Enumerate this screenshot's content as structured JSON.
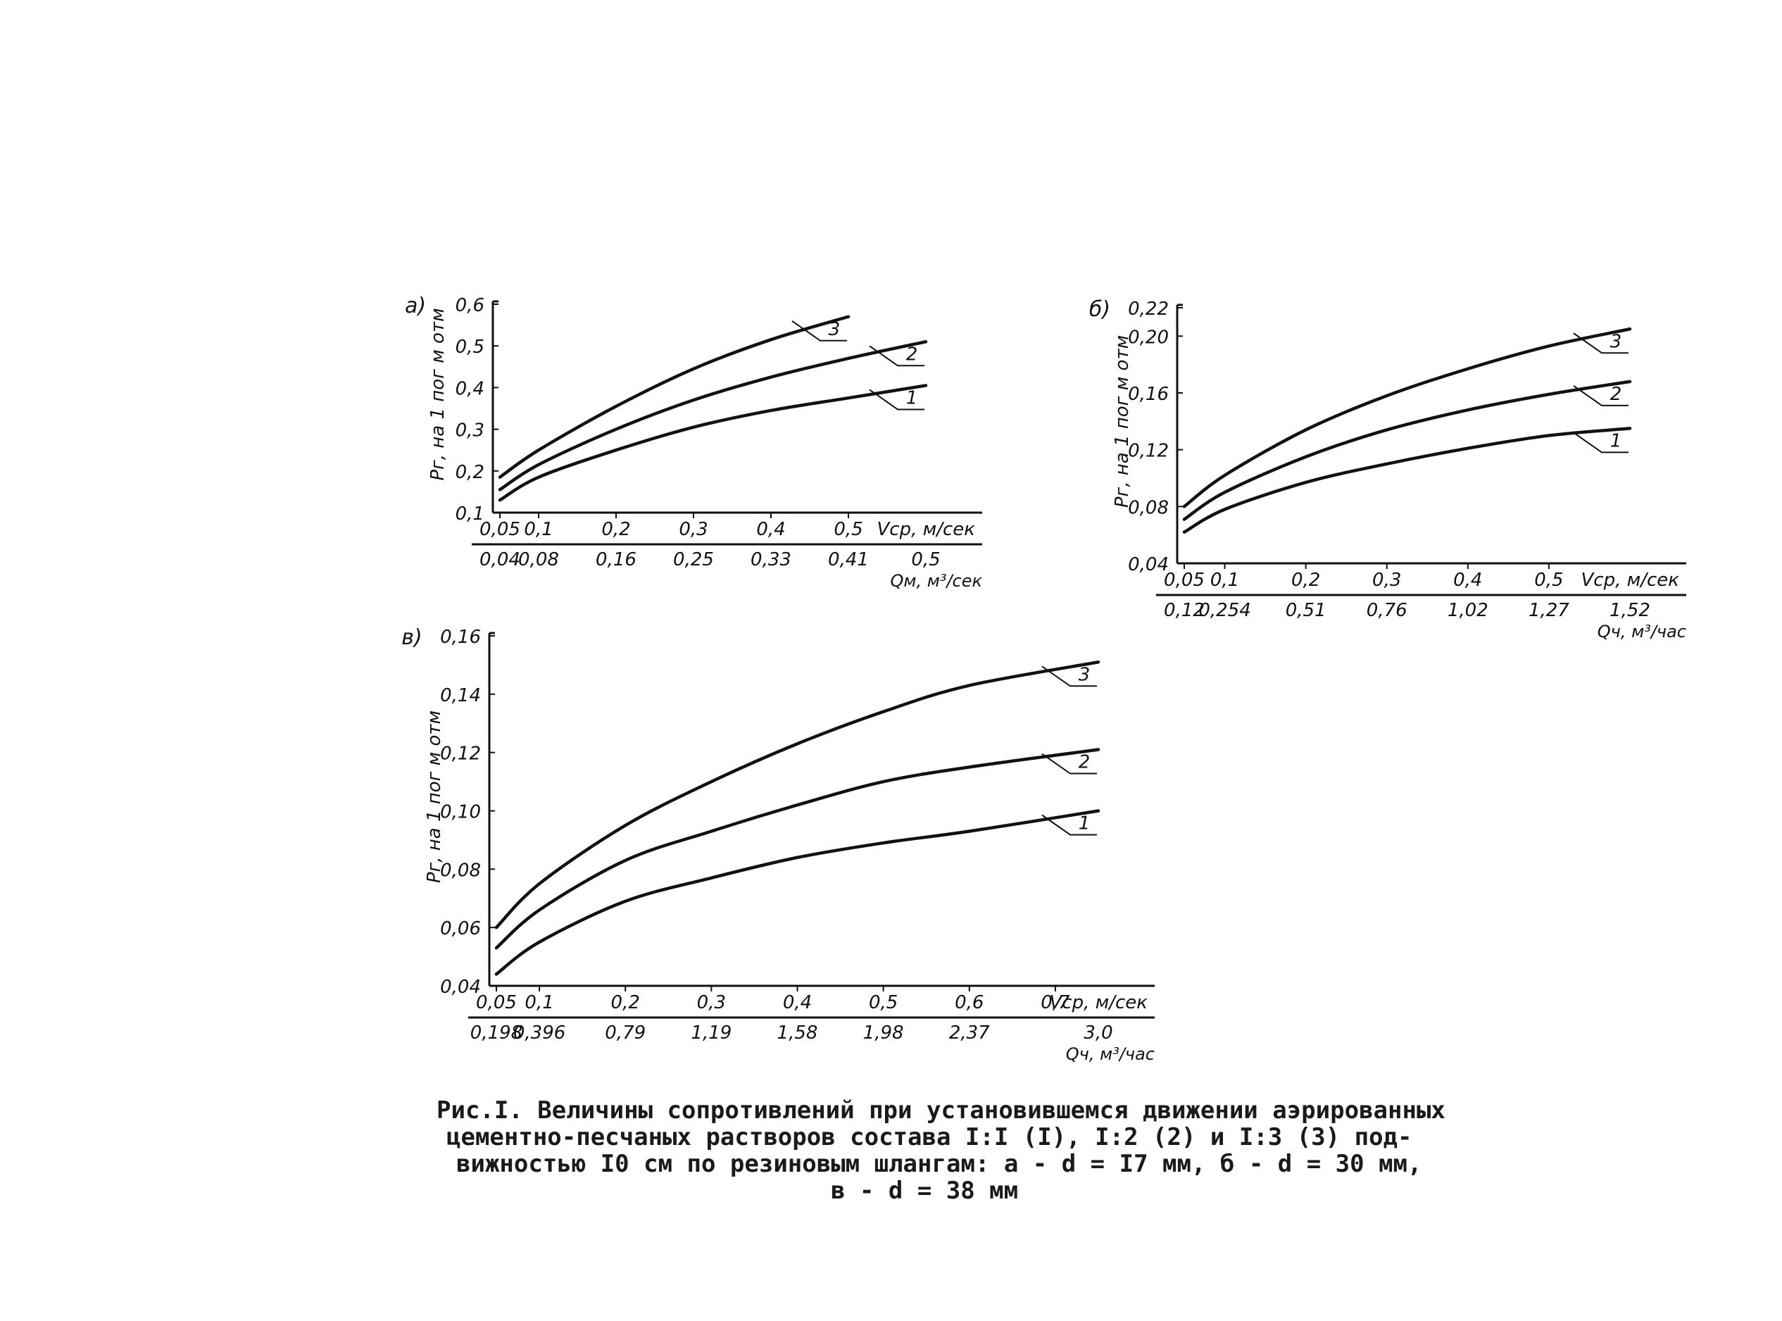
{
  "figure": {
    "caption_lines": [
      "Рис.I. Величины сопротивлений при установившемся движении аэрированных",
      "цементно-песчаных растворов состава I:I (I), I:2 (2) и I:3 (3) под-",
      "вижностью I0 см по резиновым шлангам: а - d = I7 мм, б - d = 30 мм,",
      "в - d = 38 мм"
    ]
  },
  "chart_data": [
    {
      "type": "line",
      "panel_label": "а)",
      "ylabel": "Рг, на 1 пог м отм",
      "xlabel": "Vср, м/сек",
      "x2label": "Qм, м³/сек",
      "xlim": [
        0.05,
        0.6
      ],
      "ylim": [
        0.1,
        0.6
      ],
      "yticks": [
        "0,1",
        "0,2",
        "0,3",
        "0,4",
        "0,5",
        "0,6"
      ],
      "xticks": [
        {
          "v": 0.05,
          "label": "0,05"
        },
        {
          "v": 0.1,
          "label": "0,1"
        },
        {
          "v": 0.2,
          "label": "0,2"
        },
        {
          "v": 0.3,
          "label": "0,3"
        },
        {
          "v": 0.4,
          "label": "0,4"
        },
        {
          "v": 0.5,
          "label": "0,5"
        }
      ],
      "x2ticks": [
        {
          "v": 0.05,
          "label": "0,04"
        },
        {
          "v": 0.1,
          "label": "0,08"
        },
        {
          "v": 0.2,
          "label": "0,16"
        },
        {
          "v": 0.3,
          "label": "0,25"
        },
        {
          "v": 0.4,
          "label": "0,33"
        },
        {
          "v": 0.5,
          "label": "0,41"
        },
        {
          "v": 0.6,
          "label": "0,5"
        }
      ],
      "series": [
        {
          "name": "1",
          "x": [
            0.05,
            0.1,
            0.2,
            0.3,
            0.4,
            0.5,
            0.6
          ],
          "y": [
            0.13,
            0.185,
            0.25,
            0.305,
            0.345,
            0.375,
            0.405
          ]
        },
        {
          "name": "2",
          "x": [
            0.05,
            0.1,
            0.2,
            0.3,
            0.4,
            0.5,
            0.6
          ],
          "y": [
            0.155,
            0.215,
            0.3,
            0.37,
            0.425,
            0.47,
            0.51
          ]
        },
        {
          "name": "3",
          "x": [
            0.05,
            0.1,
            0.2,
            0.3,
            0.4,
            0.5
          ],
          "y": [
            0.185,
            0.25,
            0.355,
            0.445,
            0.515,
            0.57
          ]
        }
      ]
    },
    {
      "type": "line",
      "panel_label": "б)",
      "ylabel": "Рг, на 1 пог м отм",
      "xlabel": "Vср, м/сек",
      "x2label": "Qч, м³/час",
      "xlim": [
        0.05,
        0.6
      ],
      "ylim": [
        0.04,
        0.22
      ],
      "yticks": [
        "0,04",
        "0,08",
        "0,12",
        "0,16",
        "0,20",
        "0,22"
      ],
      "ytick_values": [
        0.04,
        0.08,
        0.12,
        0.16,
        0.2,
        0.22
      ],
      "xticks": [
        {
          "v": 0.05,
          "label": "0,05"
        },
        {
          "v": 0.1,
          "label": "0,1"
        },
        {
          "v": 0.2,
          "label": "0,2"
        },
        {
          "v": 0.3,
          "label": "0,3"
        },
        {
          "v": 0.4,
          "label": "0,4"
        },
        {
          "v": 0.5,
          "label": "0,5"
        }
      ],
      "x2ticks": [
        {
          "v": 0.05,
          "label": "0,12"
        },
        {
          "v": 0.1,
          "label": "0,254"
        },
        {
          "v": 0.2,
          "label": "0,51"
        },
        {
          "v": 0.3,
          "label": "0,76"
        },
        {
          "v": 0.4,
          "label": "1,02"
        },
        {
          "v": 0.5,
          "label": "1,27"
        },
        {
          "v": 0.6,
          "label": "1,52"
        }
      ],
      "series": [
        {
          "name": "1",
          "x": [
            0.05,
            0.1,
            0.2,
            0.3,
            0.4,
            0.5,
            0.6
          ],
          "y": [
            0.062,
            0.078,
            0.097,
            0.11,
            0.121,
            0.13,
            0.135
          ]
        },
        {
          "name": "2",
          "x": [
            0.05,
            0.1,
            0.2,
            0.3,
            0.4,
            0.5,
            0.6
          ],
          "y": [
            0.071,
            0.09,
            0.115,
            0.134,
            0.148,
            0.159,
            0.168
          ]
        },
        {
          "name": "3",
          "x": [
            0.05,
            0.1,
            0.2,
            0.3,
            0.4,
            0.5,
            0.6
          ],
          "y": [
            0.08,
            0.102,
            0.134,
            0.158,
            0.177,
            0.193,
            0.205
          ]
        }
      ]
    },
    {
      "type": "line",
      "panel_label": "в)",
      "ylabel": "Рг, на 1 пог м отм",
      "xlabel": "Vср, м/сек",
      "x2label": "Qч, м³/час",
      "xlim": [
        0.05,
        0.75
      ],
      "ylim": [
        0.04,
        0.16
      ],
      "yticks": [
        "0,04",
        "0,06",
        "0,08",
        "0,10",
        "0,12",
        "0,14",
        "0,16"
      ],
      "ytick_values": [
        0.04,
        0.06,
        0.08,
        0.1,
        0.12,
        0.14,
        0.16
      ],
      "xticks": [
        {
          "v": 0.05,
          "label": "0,05"
        },
        {
          "v": 0.1,
          "label": "0,1"
        },
        {
          "v": 0.2,
          "label": "0,2"
        },
        {
          "v": 0.3,
          "label": "0,3"
        },
        {
          "v": 0.4,
          "label": "0,4"
        },
        {
          "v": 0.5,
          "label": "0,5"
        },
        {
          "v": 0.6,
          "label": "0,6"
        },
        {
          "v": 0.7,
          "label": "0,7"
        }
      ],
      "x2ticks": [
        {
          "v": 0.05,
          "label": "0,198"
        },
        {
          "v": 0.1,
          "label": "0,396"
        },
        {
          "v": 0.2,
          "label": "0,79"
        },
        {
          "v": 0.3,
          "label": "1,19"
        },
        {
          "v": 0.4,
          "label": "1,58"
        },
        {
          "v": 0.5,
          "label": "1,98"
        },
        {
          "v": 0.6,
          "label": "2,37"
        },
        {
          "v": 0.75,
          "label": "3,0"
        }
      ],
      "series": [
        {
          "name": "1",
          "x": [
            0.05,
            0.1,
            0.2,
            0.3,
            0.4,
            0.5,
            0.6,
            0.75
          ],
          "y": [
            0.044,
            0.055,
            0.069,
            0.077,
            0.084,
            0.089,
            0.093,
            0.1
          ]
        },
        {
          "name": "2",
          "x": [
            0.05,
            0.1,
            0.2,
            0.3,
            0.4,
            0.5,
            0.6,
            0.75
          ],
          "y": [
            0.053,
            0.066,
            0.083,
            0.093,
            0.102,
            0.11,
            0.115,
            0.121
          ]
        },
        {
          "name": "3",
          "x": [
            0.05,
            0.1,
            0.2,
            0.3,
            0.4,
            0.5,
            0.6,
            0.75
          ],
          "y": [
            0.06,
            0.075,
            0.095,
            0.11,
            0.123,
            0.134,
            0.143,
            0.151
          ]
        }
      ]
    }
  ]
}
